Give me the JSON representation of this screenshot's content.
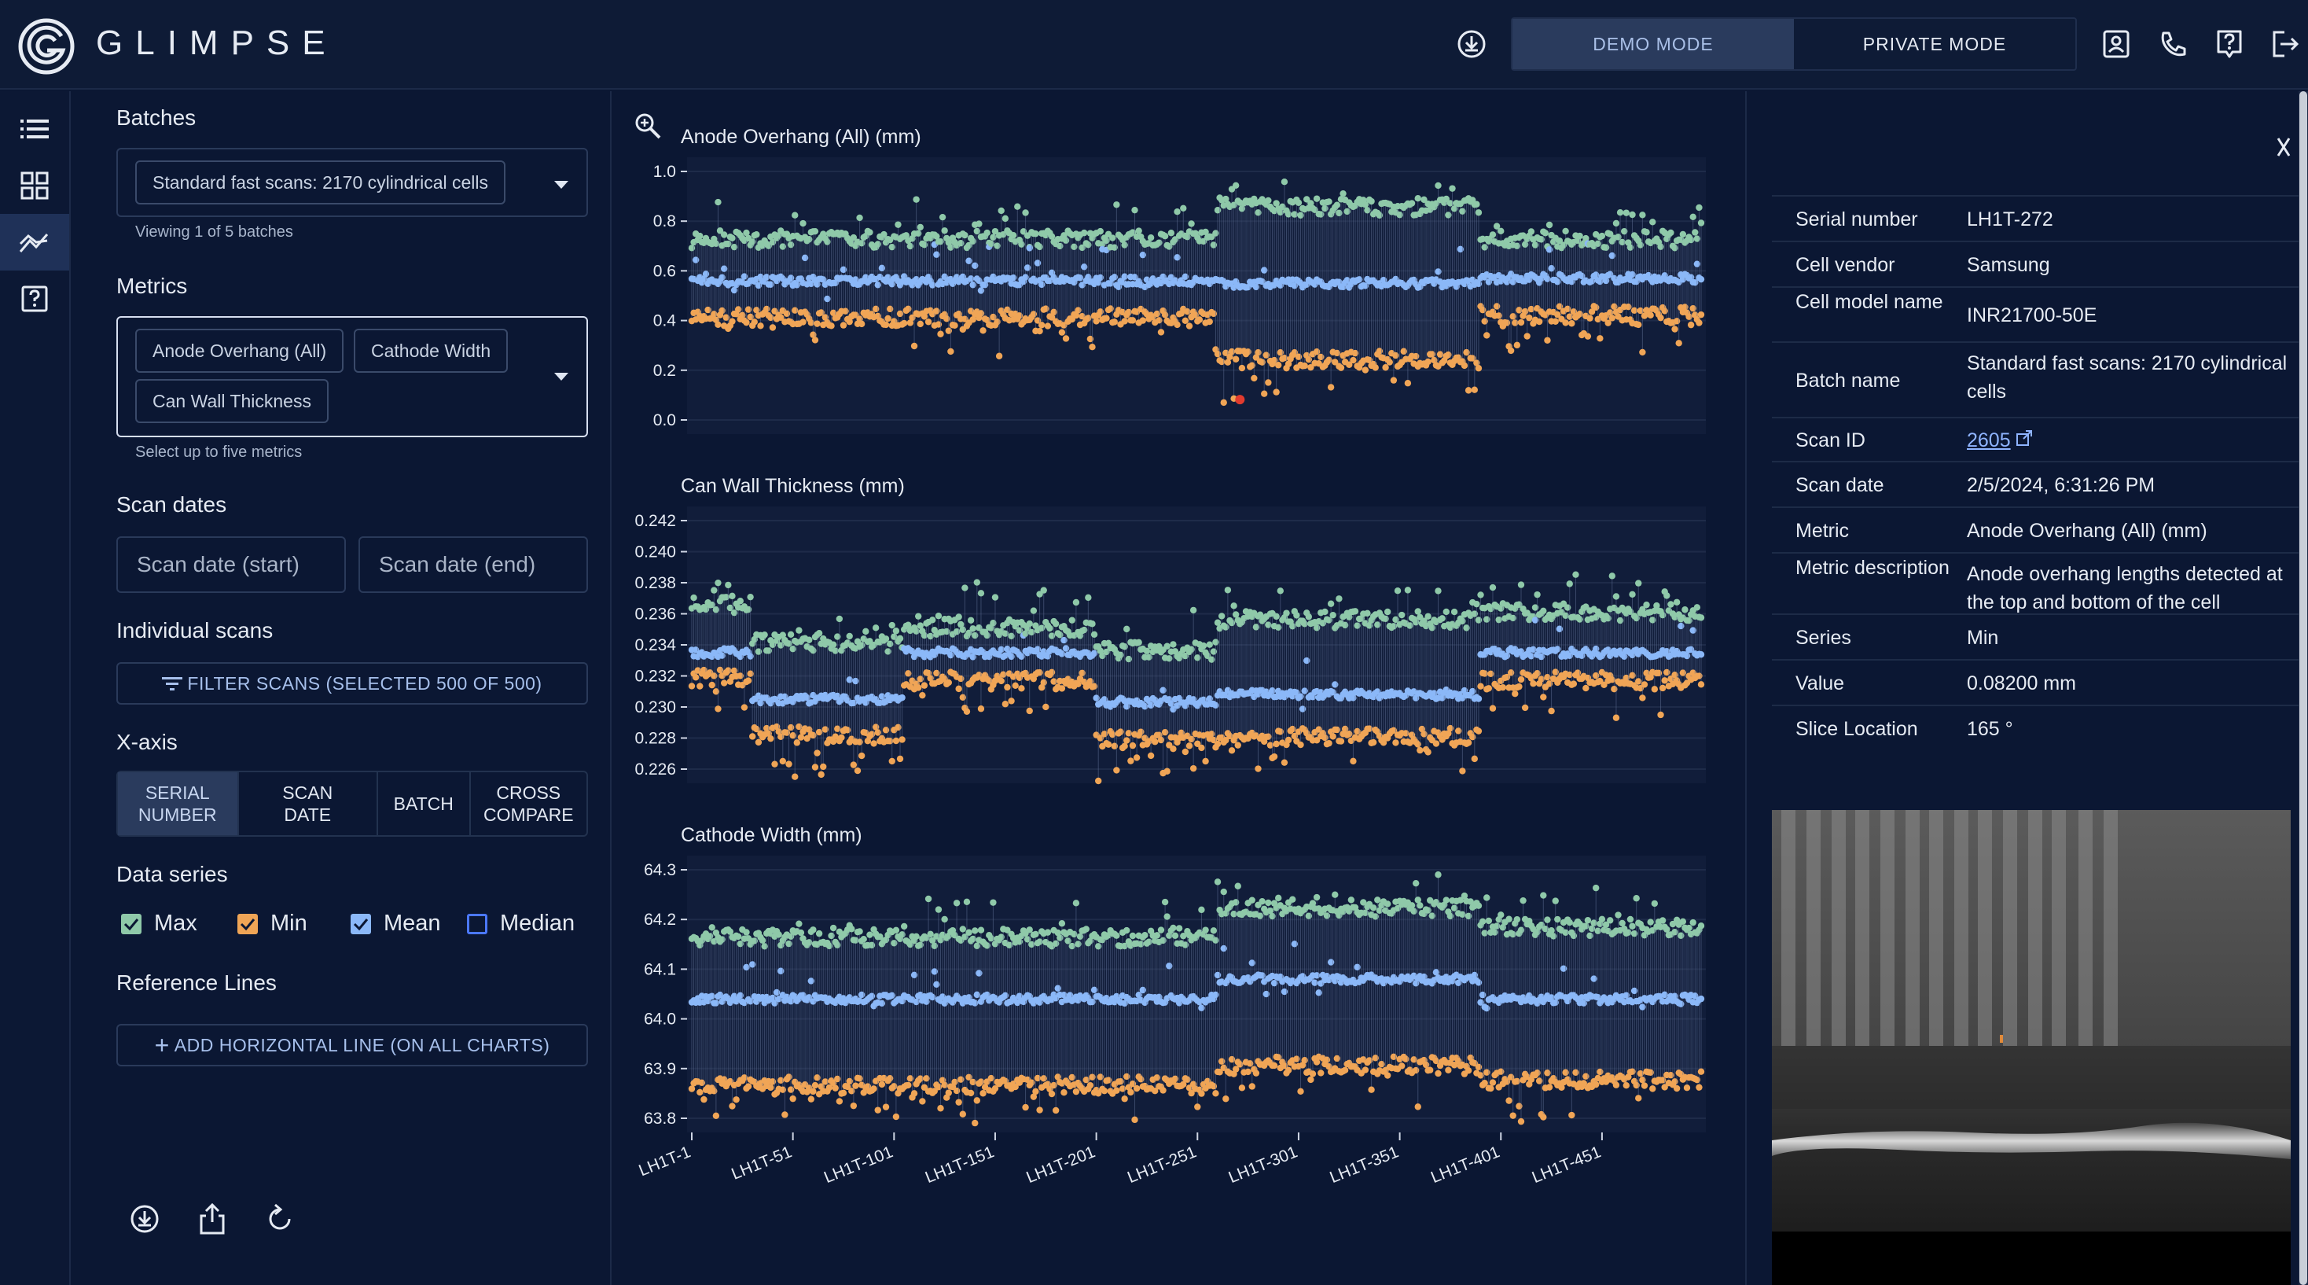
{
  "app": {
    "brand": "GLIMPSE"
  },
  "header": {
    "modes": [
      "DEMO MODE",
      "PRIVATE MODE"
    ],
    "active_mode": "DEMO MODE"
  },
  "panel": {
    "batches": {
      "title": "Batches",
      "selected": "Standard fast scans: 2170 cylindrical cells",
      "helper": "Viewing 1 of 5 batches"
    },
    "metrics": {
      "title": "Metrics",
      "chips": [
        "Anode Overhang (All)",
        "Cathode Width",
        "Can Wall Thickness"
      ],
      "helper": "Select up to five metrics"
    },
    "scan_dates": {
      "title": "Scan dates",
      "start_placeholder": "Scan date (start)",
      "end_placeholder": "Scan date (end)"
    },
    "individual_scans": {
      "title": "Individual scans",
      "button": "FILTER SCANS (SELECTED 500 OF 500)"
    },
    "x_axis": {
      "title": "X-axis",
      "options": [
        "SERIAL NUMBER",
        "SCAN DATE",
        "BATCH",
        "CROSS COMPARE"
      ],
      "active": "SERIAL NUMBER"
    },
    "data_series": {
      "title": "Data series",
      "items": [
        {
          "label": "Max",
          "checked": true,
          "color": "#8fc9a9"
        },
        {
          "label": "Min",
          "checked": true,
          "color": "#f0a556"
        },
        {
          "label": "Mean",
          "checked": true,
          "color": "#8bb8f8"
        },
        {
          "label": "Median",
          "checked": false,
          "color": "#4b78ff"
        }
      ]
    },
    "reference_lines": {
      "title": "Reference Lines",
      "button": "ADD HORIZONTAL LINE (ON ALL CHARTS)"
    }
  },
  "details": {
    "rows": [
      {
        "label": "Serial number",
        "value": "LH1T-272"
      },
      {
        "label": "Cell vendor",
        "value": "Samsung"
      },
      {
        "label": "Cell model name",
        "value": "INR21700-50E"
      },
      {
        "label": "Batch name",
        "value": "Standard fast scans: 2170 cylindrical cells"
      },
      {
        "label": "Scan ID",
        "value": "2605"
      },
      {
        "label": "Scan date",
        "value": "2/5/2024, 6:31:26 PM"
      },
      {
        "label": "Metric",
        "value": "Anode Overhang (All) (mm)"
      },
      {
        "label": "Metric description",
        "value": "Anode overhang lengths detected at the top and bottom of the cell"
      },
      {
        "label": "Series",
        "value": "Min"
      },
      {
        "label": "Value",
        "value": "0.08200 mm"
      },
      {
        "label": "Slice Location",
        "value": "165 °"
      }
    ]
  },
  "chart_data": [
    {
      "type": "scatter",
      "title": "Anode Overhang (All) (mm)",
      "ylim": [
        0.0,
        1.0
      ],
      "yticks": [
        "1.0",
        "0.8",
        "0.6",
        "0.4",
        "0.2",
        "0.0"
      ],
      "xlabel": "",
      "ylabel": "",
      "segments": [
        {
          "from": 0,
          "to": 260,
          "max": 0.72,
          "mean": 0.56,
          "min": 0.42
        },
        {
          "from": 260,
          "to": 390,
          "max": 0.85,
          "mean": 0.55,
          "min": 0.25
        },
        {
          "from": 390,
          "to": 500,
          "max": 0.72,
          "mean": 0.57,
          "min": 0.43
        }
      ],
      "highlight": {
        "x": 271,
        "value": 0.082
      }
    },
    {
      "type": "scatter",
      "title": "Can Wall Thickness (mm)",
      "ylim": [
        0.226,
        0.242
      ],
      "yticks": [
        "0.242",
        "0.240",
        "0.238",
        "0.236",
        "0.234",
        "0.232",
        "0.230",
        "0.228",
        "0.226"
      ],
      "xlabel": "",
      "ylabel": "",
      "segments": [
        {
          "from": 0,
          "to": 30,
          "max": 0.2365,
          "mean": 0.2335,
          "min": 0.232
        },
        {
          "from": 30,
          "to": 105,
          "max": 0.234,
          "mean": 0.2305,
          "min": 0.2283
        },
        {
          "from": 105,
          "to": 200,
          "max": 0.235,
          "mean": 0.2335,
          "min": 0.2318
        },
        {
          "from": 200,
          "to": 260,
          "max": 0.2335,
          "mean": 0.2303,
          "min": 0.228
        },
        {
          "from": 260,
          "to": 390,
          "max": 0.2355,
          "mean": 0.2308,
          "min": 0.2282
        },
        {
          "from": 390,
          "to": 500,
          "max": 0.236,
          "mean": 0.2335,
          "min": 0.2318
        }
      ]
    },
    {
      "type": "scatter",
      "title": "Cathode Width (mm)",
      "ylim": [
        63.8,
        64.3
      ],
      "yticks": [
        "64.3",
        "64.2",
        "64.1",
        "64.0",
        "63.9",
        "63.8"
      ],
      "xlabel": "",
      "ylabel": "",
      "x_tick_labels": [
        "LH1T-1",
        "LH1T-51",
        "LH1T-101",
        "LH1T-151",
        "LH1T-201",
        "LH1T-251",
        "LH1T-301",
        "LH1T-351",
        "LH1T-401",
        "LH1T-451"
      ],
      "segments": [
        {
          "from": 0,
          "to": 260,
          "max": 64.16,
          "mean": 64.04,
          "min": 63.87
        },
        {
          "from": 260,
          "to": 390,
          "max": 64.22,
          "mean": 64.08,
          "min": 63.91
        },
        {
          "from": 390,
          "to": 500,
          "max": 64.18,
          "mean": 64.04,
          "min": 63.88
        }
      ]
    }
  ]
}
